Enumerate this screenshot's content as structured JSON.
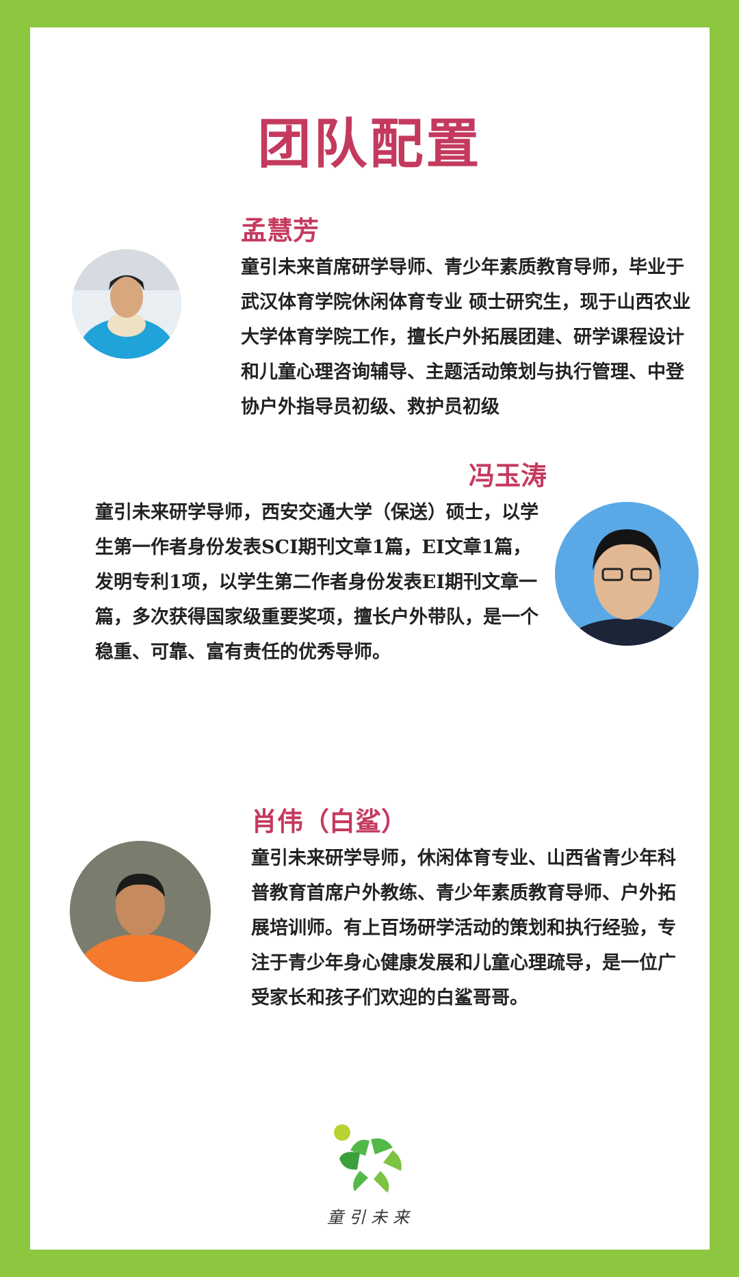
{
  "title": "团队配置",
  "members": [
    {
      "name": "孟慧芳",
      "bio": "童引未来首席研学导师、青少年素质教育导师，毕业于武汉体育学院休闲体育专业 硕士研究生，现于山西农业大学体育学院工作，擅长户外拓展团建、研学课程设计和儿童心理咨询辅导、主题活动策划与执行管理、中登协户外指导员初级、救护员初级"
    },
    {
      "name": "冯玉涛",
      "bio": "童引未来研学导师，西安交通大学（保送）硕士，以学生第一作者身份发表SCI期刊文章1篇，EI文章1篇，发明专利1项，以学生第二作者身份发表EI期刊文章一篇，多次获得国家级重要奖项，擅长户外带队，是一个稳重、可靠、富有责任的优秀导师。"
    },
    {
      "name": "肖伟（白鲨）",
      "bio": "童引未来研学导师，休闲体育专业、山西省青少年科普教育首席户外教练、青少年素质教育导师、户外拓展培训师。有上百场研学活动的策划和执行经验，专注于青少年身心健康发展和儿童心理疏导，是一位广受家长和孩子们欢迎的白鲨哥哥。"
    }
  ],
  "logo": {
    "text": "童引未来"
  },
  "colors": {
    "border": "#8dc63f",
    "accent": "#c43a5e",
    "text": "#222222"
  }
}
